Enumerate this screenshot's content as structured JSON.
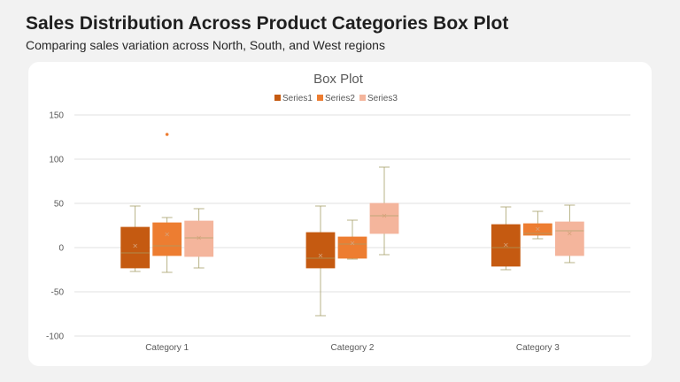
{
  "header": {
    "title": "Sales Distribution Across Product Categories Box Plot",
    "subtitle": "Comparing sales variation across North, South, and West regions"
  },
  "chart_data": {
    "type": "box",
    "title": "Box Plot",
    "categories": [
      "Category 1",
      "Category 2",
      "Category 3"
    ],
    "ylim": [
      -100,
      150
    ],
    "yticks": [
      150,
      100,
      50,
      0,
      -50,
      -100
    ],
    "grid": true,
    "legend_position": "top",
    "series": [
      {
        "name": "Series1",
        "color": "#c55a11",
        "boxes": [
          {
            "min": -27,
            "q1": -23,
            "median": -6,
            "q3": 23,
            "max": 47,
            "mean": 2
          },
          {
            "min": -77,
            "q1": -23,
            "median": -12,
            "q3": 17,
            "max": 47,
            "mean": -9
          },
          {
            "min": -25,
            "q1": -21,
            "median": 0,
            "q3": 26,
            "max": 46,
            "mean": 3
          }
        ]
      },
      {
        "name": "Series2",
        "color": "#ed7d31",
        "boxes": [
          {
            "min": -28,
            "q1": -9,
            "median": 2,
            "q3": 28,
            "max": 34,
            "mean": 15,
            "outliers": [
              128
            ]
          },
          {
            "min": -13,
            "q1": -12,
            "median": 4,
            "q3": 12,
            "max": 31,
            "mean": 5
          },
          {
            "min": 10,
            "q1": 14,
            "median": 16,
            "q3": 27,
            "max": 41,
            "mean": 21
          }
        ]
      },
      {
        "name": "Series3",
        "color": "#f4b59c",
        "boxes": [
          {
            "min": -23,
            "q1": -10,
            "median": 11,
            "q3": 30,
            "max": 44,
            "mean": 11
          },
          {
            "min": -8,
            "q1": 16,
            "median": 36,
            "q3": 50,
            "max": 91,
            "mean": 36
          },
          {
            "min": -17,
            "q1": -9,
            "median": 19,
            "q3": 29,
            "max": 48,
            "mean": 16
          }
        ]
      }
    ]
  }
}
